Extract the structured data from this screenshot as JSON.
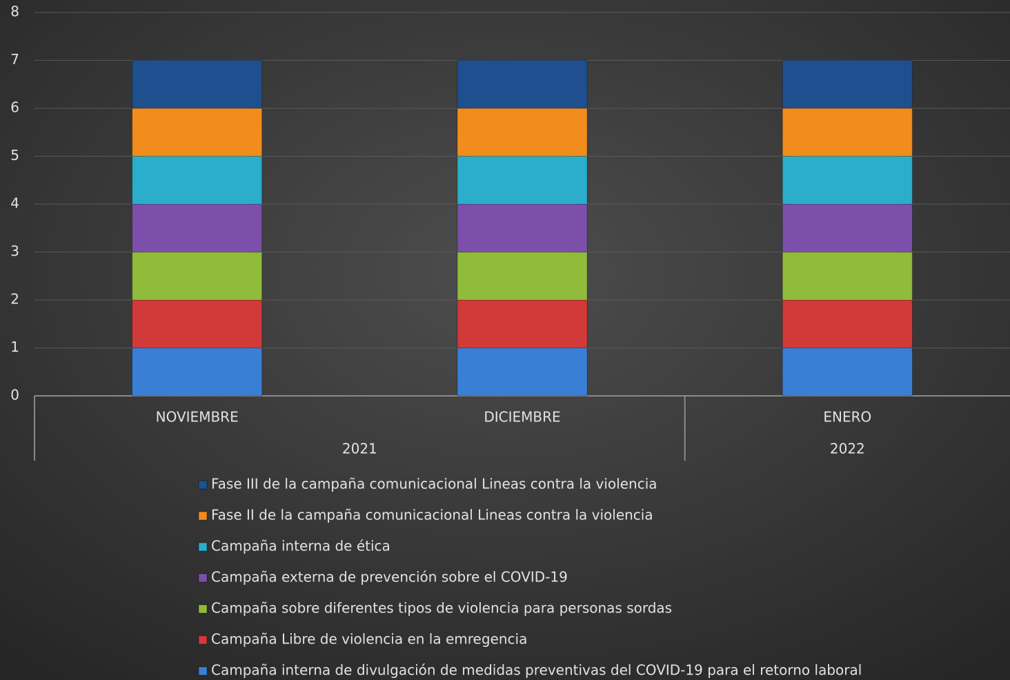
{
  "chart_data": {
    "type": "stacked_bar",
    "categories": [
      "NOVIEMBRE",
      "DICIEMBRE",
      "ENERO"
    ],
    "category_groups": [
      "2021",
      "2021",
      "2022"
    ],
    "series": [
      {
        "name": "Campaña interna de divulgación de medidas preventivas del COVID-19 para el retorno laboral",
        "color": "#3a7fd6",
        "values": [
          1,
          1,
          1
        ]
      },
      {
        "name": "Campaña Libre de violencia en la emregencia",
        "color": "#d23a3a",
        "values": [
          1,
          1,
          1
        ]
      },
      {
        "name": "Campaña sobre diferentes tipos de violencia para personas sordas",
        "color": "#8fbc3a",
        "values": [
          1,
          1,
          1
        ]
      },
      {
        "name": "Campaña externa de prevención sobre el COVID-19",
        "color": "#7c50aa",
        "values": [
          1,
          1,
          1
        ]
      },
      {
        "name": "Campaña interna de ética",
        "color": "#2aaecb",
        "values": [
          1,
          1,
          1
        ]
      },
      {
        "name": "Fase II de la campaña comunicacional Lineas contra la violencia",
        "color": "#f28c1c",
        "values": [
          1,
          1,
          1
        ]
      },
      {
        "name": "Fase III de la campaña comunicacional Lineas contra la violencia",
        "color": "#1f4f8e",
        "values": [
          1,
          1,
          1
        ]
      }
    ],
    "ylim": [
      0,
      8
    ],
    "yticks": [
      0,
      1,
      2,
      3,
      4,
      5,
      6,
      7,
      8
    ],
    "grid": true,
    "legend": "bottom"
  }
}
